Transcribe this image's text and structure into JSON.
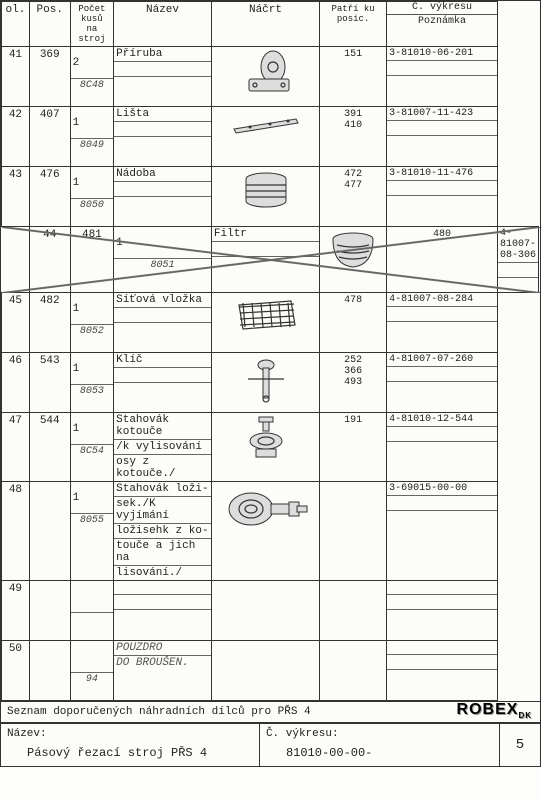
{
  "headers": {
    "ol": "ol.",
    "pos": "Pos.",
    "pocet": "Počet kusů na stroj",
    "nazev": "Název",
    "nacrt": "Náčrt",
    "patri": "Patří ku posic.",
    "vykres_top": "Č. výkresu",
    "vykres_bot": "Poznámka"
  },
  "rows": [
    {
      "ol": "41",
      "pos": "369",
      "qty": "2",
      "code": "8C48",
      "nazev": "Příruba",
      "patri": "151",
      "vykres": "3-81010-06-201",
      "icon": "flange"
    },
    {
      "ol": "42",
      "pos": "407",
      "qty": "1",
      "code": "8049",
      "nazev": "Lišta",
      "patri": "391\n410",
      "vykres": "3-81007-11-423",
      "icon": "strip"
    },
    {
      "ol": "43",
      "pos": "476",
      "qty": "1",
      "code": "8050",
      "nazev": "Nádoba",
      "patri": "472\n477",
      "vykres": "3-81010-11-476",
      "icon": "vessel"
    },
    {
      "ol": "44",
      "pos": "481",
      "qty": "1",
      "code": "8051",
      "nazev": "Filtr",
      "patri": "480",
      "vykres": "4-81007-08-306",
      "icon": "filter",
      "crossed": true
    },
    {
      "ol": "45",
      "pos": "482",
      "qty": "1",
      "code": "8052",
      "nazev": "Síťová vložka",
      "patri": "478",
      "vykres": "4-81007-08-284",
      "icon": "mesh"
    },
    {
      "ol": "46",
      "pos": "543",
      "qty": "1",
      "code": "8053",
      "nazev": "Klíč",
      "patri": "252\n366\n493",
      "vykres": "4-81007-07-260",
      "icon": "wrench"
    },
    {
      "ol": "47",
      "pos": "544",
      "qty": "1",
      "code": "8C54",
      "nazev_lines": [
        "Stahovák kotouče",
        "/k vylisování",
        "osy z kotouče./"
      ],
      "patri": "191",
      "vykres": "4-81010-12-544",
      "icon": "puller1"
    },
    {
      "ol": "48",
      "pos": "",
      "qty": "1",
      "code": "8055",
      "nazev_lines": [
        "Stahovák loži-",
        "sek./K vyjímání",
        "ložisehk z ko-",
        "touče a jich na",
        "lisování./"
      ],
      "patri": "",
      "vykres": "3-69015-00-00",
      "icon": "puller2"
    },
    {
      "ol": "49",
      "pos": "",
      "qty": "",
      "code": "",
      "nazev": "",
      "patri": "",
      "vykres": "",
      "icon": ""
    },
    {
      "ol": "50",
      "pos": "",
      "qty": "",
      "code": "94",
      "nazev_lines": [
        "POUZDRO",
        "DO BROUŠEN."
      ],
      "hand": true,
      "patri": "",
      "vykres": "",
      "icon": ""
    }
  ],
  "footer": {
    "seznam": "Seznam doporučených náhradních dílců pro PŘS 4",
    "nazev_label": "Název:",
    "nazev_value": "Pásový řezací stroj PŘS 4",
    "vykres_label": "Č. výkresu:",
    "vykres_value": "81010-00-00-",
    "page": "5",
    "logo": "ROBEX"
  }
}
